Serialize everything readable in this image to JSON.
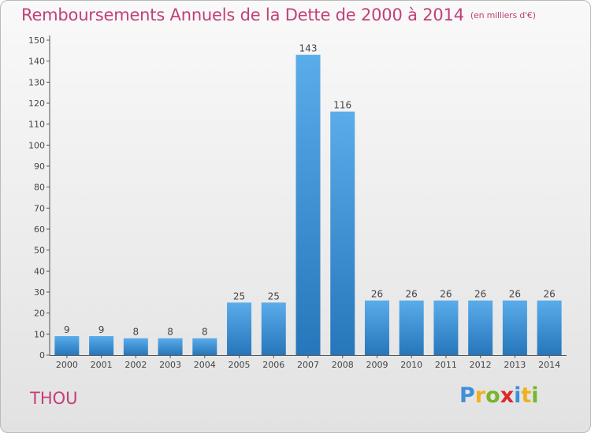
{
  "title": "Remboursements Annuels de la Dette de 2000 à 2014",
  "subtitle": "(en milliers d'€)",
  "place": "THOU",
  "logo": {
    "letters": [
      "P",
      "r",
      "o",
      "x",
      "i",
      "t",
      "i"
    ],
    "colors": [
      "#3f8fd6",
      "#f0b01e",
      "#7ab52a",
      "#e0262b",
      "#3f8fd6",
      "#f0b01e",
      "#7ab52a"
    ]
  },
  "chart_data": {
    "type": "bar",
    "categories": [
      "2000",
      "2001",
      "2002",
      "2003",
      "2004",
      "2005",
      "2006",
      "2007",
      "2008",
      "2009",
      "2010",
      "2011",
      "2012",
      "2013",
      "2014"
    ],
    "values": [
      9,
      9,
      8,
      8,
      8,
      25,
      25,
      143,
      116,
      26,
      26,
      26,
      26,
      26,
      26
    ],
    "data_labels": [
      "9",
      "9",
      "8",
      "8",
      "8",
      "25",
      "25",
      "143",
      "116",
      "26",
      "26",
      "26",
      "26",
      "26",
      "26"
    ],
    "ylim": [
      0,
      150
    ],
    "yticks": [
      0,
      10,
      20,
      30,
      40,
      50,
      60,
      70,
      80,
      90,
      100,
      110,
      120,
      130,
      140,
      150
    ],
    "grid": false,
    "bar_color": "#3a8ed8"
  }
}
